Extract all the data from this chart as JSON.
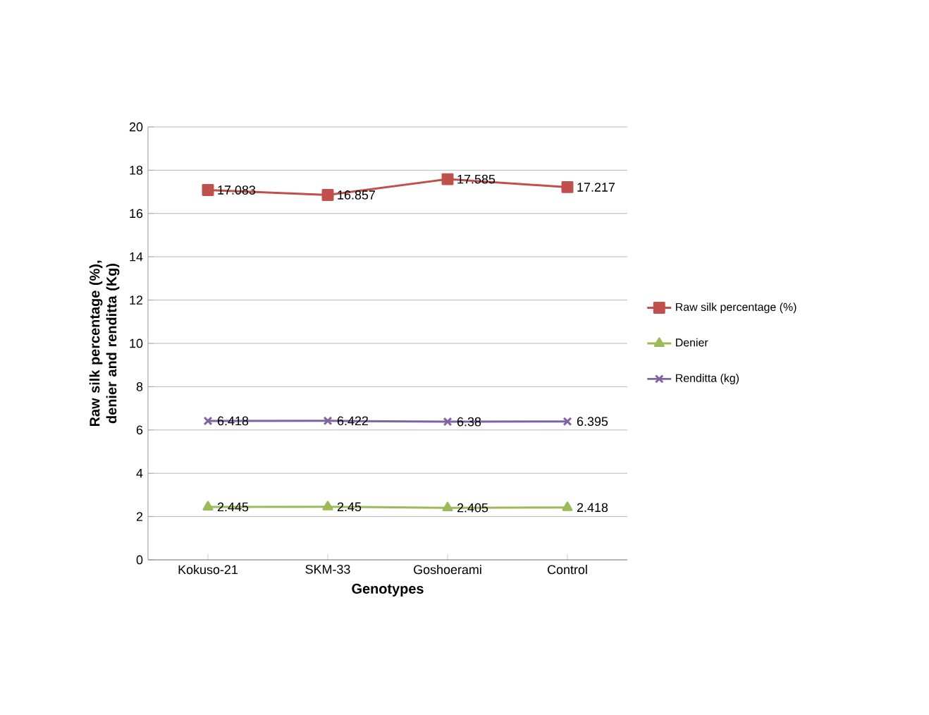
{
  "chart_data": {
    "type": "line",
    "xlabel": "Genotypes",
    "ylabel": "Raw silk percentage (%), denier and renditta (Kg)",
    "categories": [
      "Kokuso-21",
      "SKM-33",
      "Goshoerami",
      "Control"
    ],
    "series": [
      {
        "name": "Raw silk percentage (%)",
        "color": "#c0504d",
        "marker": "square",
        "values": [
          17.083,
          16.857,
          17.585,
          17.217
        ],
        "value_labels": [
          "17.083",
          "16.857",
          "17.585",
          "17.217"
        ]
      },
      {
        "name": "Denier",
        "color": "#9bbb59",
        "marker": "triangle",
        "values": [
          2.445,
          2.45,
          2.405,
          2.418
        ],
        "value_labels": [
          "2.445",
          "2.45",
          "2.405",
          "2.418"
        ]
      },
      {
        "name": "Renditta (kg)",
        "color": "#8064a2",
        "marker": "cross",
        "values": [
          6.418,
          6.422,
          6.38,
          6.395
        ],
        "value_labels": [
          "6.418",
          "6.422",
          "6.38",
          "6.395"
        ]
      }
    ],
    "ylim": [
      0,
      20
    ],
    "yticks": [
      0,
      2,
      4,
      6,
      8,
      10,
      12,
      14,
      16,
      18,
      20
    ],
    "grid": "y",
    "legend": "right",
    "line_style": "solid"
  }
}
